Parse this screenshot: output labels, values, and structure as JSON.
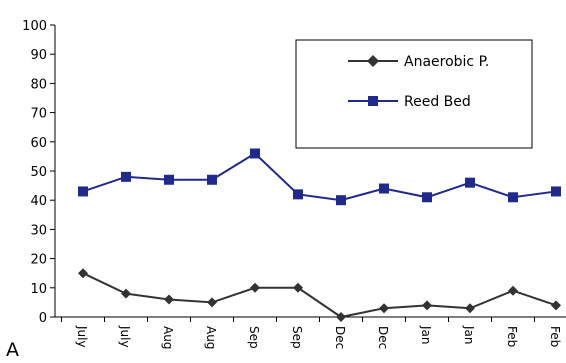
{
  "panel_label": "A",
  "chart_data": {
    "type": "line",
    "categories": [
      "July",
      "July",
      "Aug",
      "Aug",
      "Sep",
      "Sep",
      "Dec",
      "Dec",
      "Jan",
      "Jan",
      "Feb",
      "Feb"
    ],
    "series": [
      {
        "name": "Anaerobic P.",
        "values": [
          15,
          8,
          6,
          5,
          10,
          10,
          0,
          3,
          4,
          3,
          9,
          4
        ],
        "color": "#333333",
        "marker": "diamond"
      },
      {
        "name": "Reed Bed",
        "values": [
          43,
          48,
          47,
          47,
          56,
          42,
          40,
          44,
          41,
          46,
          41,
          43
        ],
        "color": "#1f2a8c",
        "marker": "square"
      }
    ],
    "ylim": [
      0,
      100
    ],
    "yticks": [
      "0",
      "10",
      "20",
      "30",
      "40",
      "50",
      "60",
      "70",
      "80",
      "90",
      "100"
    ],
    "grid": false,
    "legend_position": "top-right"
  }
}
